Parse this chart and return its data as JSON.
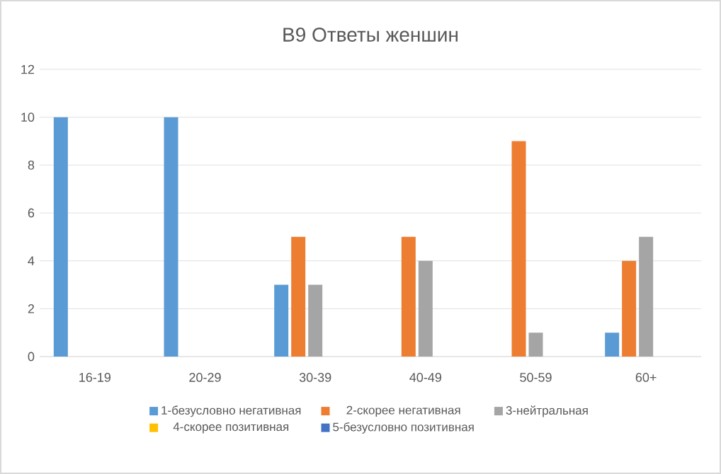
{
  "chart_data": {
    "type": "bar",
    "title": "В9 Ответы женшин",
    "categories": [
      "16-19",
      "20-29",
      "30-39",
      "40-49",
      "50-59",
      "60+"
    ],
    "series": [
      {
        "name": "1-безусловно негативная",
        "color": "#5b9bd5",
        "values": [
          10,
          10,
          3,
          0,
          0,
          1
        ]
      },
      {
        "name": "2-скорее негативная",
        "color": "#ed7d31",
        "values": [
          0,
          0,
          5,
          5,
          9,
          4
        ]
      },
      {
        "name": "3-нейтральная",
        "color": "#a5a5a5",
        "values": [
          0,
          0,
          3,
          4,
          1,
          5
        ]
      },
      {
        "name": "4-скорее позитивная",
        "color": "#ffc000",
        "values": [
          0,
          0,
          0,
          0,
          0,
          0
        ]
      },
      {
        "name": "5-безусловно позитивная",
        "color": "#4472c4",
        "values": [
          0,
          0,
          0,
          0,
          0,
          0
        ]
      }
    ],
    "ylim": [
      0,
      12
    ],
    "yticks": [
      0,
      2,
      4,
      6,
      8,
      10,
      12
    ],
    "grid": "y",
    "legend": "bottom"
  }
}
